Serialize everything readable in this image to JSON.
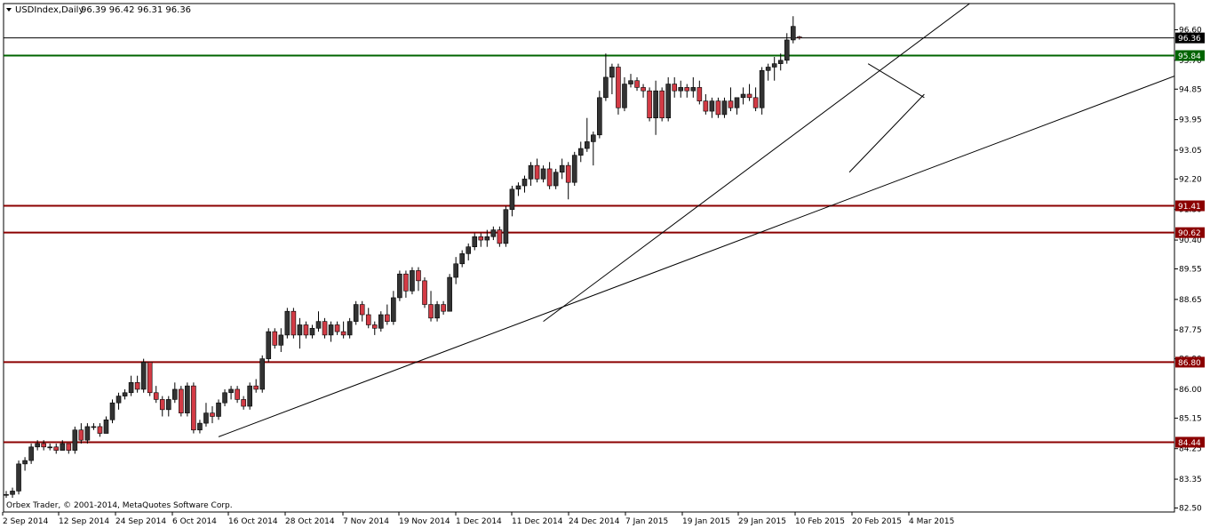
{
  "chart_data": {
    "type": "candlestick",
    "symbol": "USDIndex,Daily",
    "ohlc_readout": "96.39 96.42 96.31 96.36",
    "copyright": "Orbex Trader, © 2001-2014, MetaQuotes Software Corp.",
    "ylim": [
      82.37,
      97.0
    ],
    "y_ticks": [
      "96.60",
      "95.70",
      "94.85",
      "93.95",
      "93.05",
      "92.20",
      "91.30",
      "90.40",
      "89.55",
      "88.65",
      "87.75",
      "86.90",
      "86.00",
      "85.15",
      "84.25",
      "83.35",
      "82.50"
    ],
    "x_ticks": [
      "2 Sep 2014",
      "12 Sep 2014",
      "24 Sep 2014",
      "6 Oct 2014",
      "16 Oct 2014",
      "28 Oct 2014",
      "7 Nov 2014",
      "19 Nov 2014",
      "1 Dec 2014",
      "11 Dec 2014",
      "24 Dec 2014",
      "7 Jan 2015",
      "19 Jan 2015",
      "29 Jan 2015",
      "10 Feb 2015",
      "20 Feb 2015",
      "4 Mar 2015"
    ],
    "current_price": {
      "value": 96.36,
      "label": "96.36",
      "color": "#000000"
    },
    "levels": [
      {
        "value": 95.84,
        "label": "95.84",
        "color": "#006400"
      },
      {
        "value": 91.41,
        "label": "91.41",
        "color": "#8b0000"
      },
      {
        "value": 90.62,
        "label": "90.62",
        "color": "#8b0000"
      },
      {
        "value": 86.8,
        "label": "86.80",
        "color": "#8b0000"
      },
      {
        "value": 84.44,
        "label": "84.44",
        "color": "#8b0000"
      }
    ],
    "trendlines": [
      {
        "from": [
          34,
          84.6
        ],
        "to": [
          188,
          95.3
        ]
      },
      {
        "from": [
          86,
          88.0
        ],
        "to": [
          153,
          97.2
        ]
      },
      {
        "from": [
          135,
          92.4
        ],
        "to": [
          147,
          94.7
        ]
      },
      {
        "from": [
          138,
          95.6
        ],
        "to": [
          147,
          94.6
        ]
      }
    ],
    "colors": {
      "bull": "#333333",
      "bear": "#d33b45",
      "wick": "#000000"
    },
    "candles": [
      [
        82.9,
        83.0,
        82.8,
        82.9
      ],
      [
        82.9,
        83.1,
        82.8,
        83.0
      ],
      [
        83.0,
        83.9,
        82.9,
        83.8
      ],
      [
        83.8,
        84.0,
        83.6,
        83.9
      ],
      [
        83.9,
        84.4,
        83.8,
        84.3
      ],
      [
        84.3,
        84.5,
        84.2,
        84.4
      ],
      [
        84.4,
        84.5,
        84.2,
        84.3
      ],
      [
        84.3,
        84.4,
        84.2,
        84.3
      ],
      [
        84.3,
        84.4,
        84.1,
        84.2
      ],
      [
        84.2,
        84.5,
        84.2,
        84.4
      ],
      [
        84.4,
        84.4,
        84.1,
        84.2
      ],
      [
        84.2,
        84.9,
        84.1,
        84.8
      ],
      [
        84.8,
        85.0,
        84.4,
        84.5
      ],
      [
        84.5,
        85.0,
        84.4,
        84.9
      ],
      [
        84.9,
        85.0,
        84.8,
        84.9
      ],
      [
        84.9,
        85.0,
        84.6,
        84.7
      ],
      [
        84.7,
        85.2,
        84.7,
        85.1
      ],
      [
        85.1,
        85.7,
        85.0,
        85.6
      ],
      [
        85.6,
        85.9,
        85.4,
        85.8
      ],
      [
        85.8,
        86.0,
        85.7,
        85.9
      ],
      [
        85.9,
        86.4,
        85.8,
        86.2
      ],
      [
        86.2,
        86.4,
        85.9,
        86.0
      ],
      [
        86.0,
        86.9,
        85.9,
        86.8
      ],
      [
        86.8,
        86.8,
        85.8,
        85.9
      ],
      [
        85.9,
        86.1,
        85.6,
        85.7
      ],
      [
        85.7,
        85.8,
        85.2,
        85.4
      ],
      [
        85.4,
        85.8,
        85.2,
        85.7
      ],
      [
        85.7,
        86.2,
        85.6,
        86.0
      ],
      [
        86.0,
        86.1,
        85.2,
        85.3
      ],
      [
        85.3,
        86.2,
        85.2,
        86.1
      ],
      [
        86.1,
        86.2,
        84.7,
        84.8
      ],
      [
        84.8,
        85.1,
        84.7,
        85.0
      ],
      [
        85.0,
        85.6,
        84.9,
        85.3
      ],
      [
        85.3,
        85.5,
        85.0,
        85.2
      ],
      [
        85.2,
        85.7,
        85.1,
        85.6
      ],
      [
        85.6,
        86.0,
        85.5,
        85.9
      ],
      [
        85.9,
        86.1,
        85.7,
        86.0
      ],
      [
        86.0,
        86.1,
        85.6,
        85.7
      ],
      [
        85.7,
        85.8,
        85.4,
        85.5
      ],
      [
        85.5,
        86.2,
        85.4,
        86.1
      ],
      [
        86.1,
        86.3,
        85.9,
        86.0
      ],
      [
        86.0,
        87.0,
        85.9,
        86.9
      ],
      [
        86.9,
        87.8,
        86.8,
        87.7
      ],
      [
        87.7,
        87.8,
        87.2,
        87.3
      ],
      [
        87.3,
        87.8,
        87.1,
        87.6
      ],
      [
        87.6,
        88.4,
        87.5,
        88.3
      ],
      [
        88.3,
        88.4,
        87.5,
        87.6
      ],
      [
        87.6,
        88.1,
        87.2,
        87.9
      ],
      [
        87.9,
        88.0,
        87.5,
        87.6
      ],
      [
        87.6,
        87.9,
        87.5,
        87.8
      ],
      [
        87.8,
        88.3,
        87.7,
        88.0
      ],
      [
        88.0,
        88.1,
        87.5,
        87.6
      ],
      [
        87.6,
        88.0,
        87.4,
        87.9
      ],
      [
        87.9,
        88.0,
        87.6,
        87.7
      ],
      [
        87.7,
        88.0,
        87.5,
        87.6
      ],
      [
        87.6,
        88.1,
        87.5,
        88.0
      ],
      [
        88.0,
        88.6,
        87.9,
        88.5
      ],
      [
        88.5,
        88.6,
        88.0,
        88.2
      ],
      [
        88.2,
        88.4,
        87.8,
        87.9
      ],
      [
        87.9,
        88.0,
        87.6,
        87.8
      ],
      [
        87.8,
        88.3,
        87.7,
        88.2
      ],
      [
        88.2,
        88.5,
        87.9,
        88.0
      ],
      [
        88.0,
        88.9,
        87.9,
        88.7
      ],
      [
        88.7,
        89.5,
        88.6,
        89.4
      ],
      [
        89.4,
        89.5,
        88.7,
        88.9
      ],
      [
        88.9,
        89.6,
        88.8,
        89.5
      ],
      [
        89.5,
        89.6,
        88.9,
        89.2
      ],
      [
        89.2,
        89.3,
        88.4,
        88.5
      ],
      [
        88.5,
        88.9,
        88.0,
        88.1
      ],
      [
        88.1,
        88.6,
        88.0,
        88.5
      ],
      [
        88.5,
        88.6,
        88.2,
        88.3
      ],
      [
        88.3,
        89.4,
        88.3,
        89.3
      ],
      [
        89.3,
        89.9,
        89.1,
        89.7
      ],
      [
        89.7,
        90.1,
        89.6,
        90.0
      ],
      [
        90.0,
        90.3,
        89.8,
        90.2
      ],
      [
        90.2,
        90.6,
        90.1,
        90.5
      ],
      [
        90.5,
        90.6,
        90.2,
        90.4
      ],
      [
        90.4,
        90.7,
        90.2,
        90.5
      ],
      [
        90.5,
        90.8,
        90.4,
        90.7
      ],
      [
        90.7,
        90.8,
        90.2,
        90.3
      ],
      [
        90.3,
        91.4,
        90.2,
        91.3
      ],
      [
        91.3,
        92.0,
        91.1,
        91.9
      ],
      [
        91.9,
        92.1,
        91.7,
        92.0
      ],
      [
        92.0,
        92.3,
        91.8,
        92.2
      ],
      [
        92.2,
        92.7,
        92.0,
        92.6
      ],
      [
        92.6,
        92.8,
        92.1,
        92.2
      ],
      [
        92.2,
        92.6,
        92.1,
        92.5
      ],
      [
        92.5,
        92.7,
        91.9,
        92.0
      ],
      [
        92.0,
        92.5,
        91.9,
        92.4
      ],
      [
        92.4,
        92.8,
        92.2,
        92.6
      ],
      [
        92.6,
        92.7,
        91.6,
        92.1
      ],
      [
        92.1,
        93.0,
        92.0,
        92.9
      ],
      [
        92.9,
        93.3,
        92.7,
        93.1
      ],
      [
        93.1,
        94.0,
        93.0,
        93.3
      ],
      [
        93.3,
        93.6,
        92.6,
        93.5
      ],
      [
        93.5,
        94.8,
        93.4,
        94.6
      ],
      [
        94.6,
        95.9,
        94.5,
        95.2
      ],
      [
        95.2,
        95.6,
        94.7,
        95.5
      ],
      [
        95.5,
        95.6,
        94.1,
        94.3
      ],
      [
        94.3,
        95.2,
        94.2,
        95.0
      ],
      [
        95.0,
        95.3,
        94.9,
        95.1
      ],
      [
        95.1,
        95.2,
        94.8,
        94.9
      ],
      [
        94.9,
        95.0,
        94.6,
        94.8
      ],
      [
        94.8,
        94.9,
        93.9,
        94.0
      ],
      [
        94.0,
        95.1,
        93.5,
        94.8
      ],
      [
        94.8,
        94.9,
        93.9,
        94.0
      ],
      [
        94.0,
        95.2,
        93.9,
        95.0
      ],
      [
        95.0,
        95.2,
        94.6,
        94.8
      ],
      [
        94.8,
        95.1,
        94.6,
        94.9
      ],
      [
        94.9,
        95.0,
        94.6,
        94.8
      ],
      [
        94.8,
        95.2,
        94.6,
        94.9
      ],
      [
        94.9,
        95.1,
        94.4,
        94.5
      ],
      [
        94.5,
        94.7,
        94.1,
        94.2
      ],
      [
        94.2,
        94.6,
        94.0,
        94.5
      ],
      [
        94.5,
        94.6,
        94.0,
        94.1
      ],
      [
        94.1,
        94.6,
        94.0,
        94.5
      ],
      [
        94.5,
        94.9,
        94.2,
        94.3
      ],
      [
        94.3,
        94.6,
        94.1,
        94.6
      ],
      [
        94.6,
        94.9,
        94.4,
        94.7
      ],
      [
        94.7,
        95.0,
        94.5,
        94.6
      ],
      [
        94.6,
        94.9,
        94.2,
        94.3
      ],
      [
        94.3,
        95.5,
        94.1,
        95.4
      ],
      [
        95.4,
        95.6,
        95.1,
        95.5
      ],
      [
        95.5,
        95.8,
        95.1,
        95.6
      ],
      [
        95.6,
        95.9,
        95.4,
        95.7
      ],
      [
        95.7,
        96.5,
        95.6,
        96.3
      ],
      [
        96.3,
        97.0,
        96.2,
        96.7
      ],
      [
        96.39,
        96.42,
        96.31,
        96.36
      ]
    ]
  }
}
